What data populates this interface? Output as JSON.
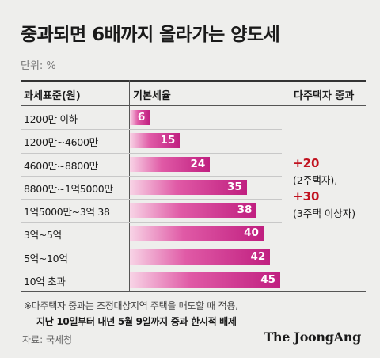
{
  "title": "중과되면 6배까지 올라가는 양도세",
  "unit": "단위: %",
  "headers": {
    "col1": "과세표준(원)",
    "col2": "기본세율",
    "col3": "다주택자 중과"
  },
  "surcharge": {
    "first_value": "+20",
    "first_note": "(2주택자),",
    "second_value": "+30",
    "second_note": "(3주택 이상자)"
  },
  "footnote": {
    "line1": "※다주택자 중과는 조정대상지역 주택을 매도할 때 적용,",
    "line2": "지난 10일부터 내년 5월 9일까지 중과 한시적 배제"
  },
  "source": "자료: 국세청",
  "brand": "The JoongAng",
  "chart_data": {
    "type": "bar",
    "orientation": "horizontal",
    "categories": [
      "1200만 이하",
      "1200만~4600만",
      "4600만~8800만",
      "8800만~1억5000만",
      "1억5000만~3억 38",
      "3억~5억",
      "5억~10억",
      "10억 초과"
    ],
    "values": [
      6,
      15,
      24,
      35,
      38,
      40,
      42,
      45
    ],
    "title": "중과되면 6배까지 올라가는 양도세",
    "xlabel": "기본세율",
    "ylabel": "과세표준(원)",
    "xlim": [
      0,
      45
    ],
    "colors": {
      "bar_start": "#f8d4e6",
      "bar_mid": "#e05aa6",
      "bar_end": "#c01f80",
      "value_text": "#ffffff",
      "surcharge": "#c1121f"
    },
    "grid": false
  }
}
